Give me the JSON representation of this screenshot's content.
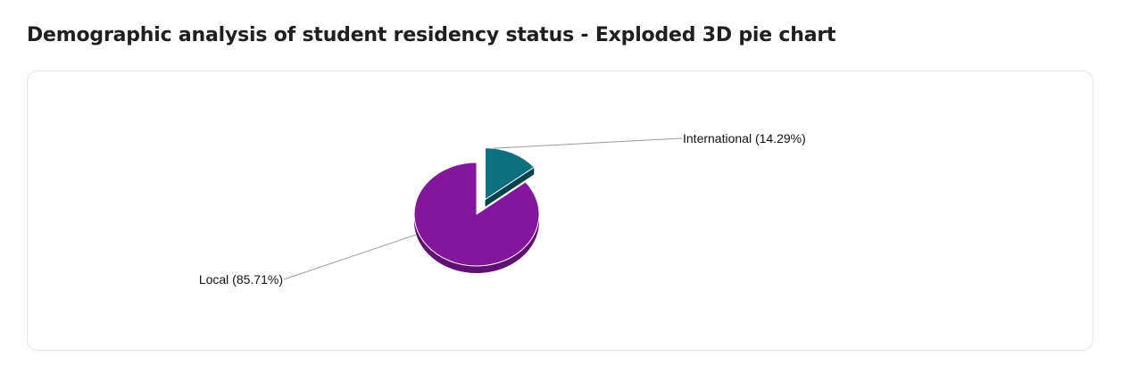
{
  "page": {
    "title": "Demographic analysis of student residency status - Exploded 3D pie chart"
  },
  "chart_data": {
    "type": "pie",
    "variant": "exploded-3d",
    "title": "Demographic analysis of student residency status - Exploded 3D pie chart",
    "categories": [
      "International",
      "Local"
    ],
    "values": [
      14.29,
      85.71
    ],
    "colors": [
      "#0e6f80",
      "#84169e"
    ],
    "labels": [
      "International (14.29%)",
      "Local (85.71%)"
    ],
    "exploded": [
      "International"
    ],
    "legend": "none"
  }
}
